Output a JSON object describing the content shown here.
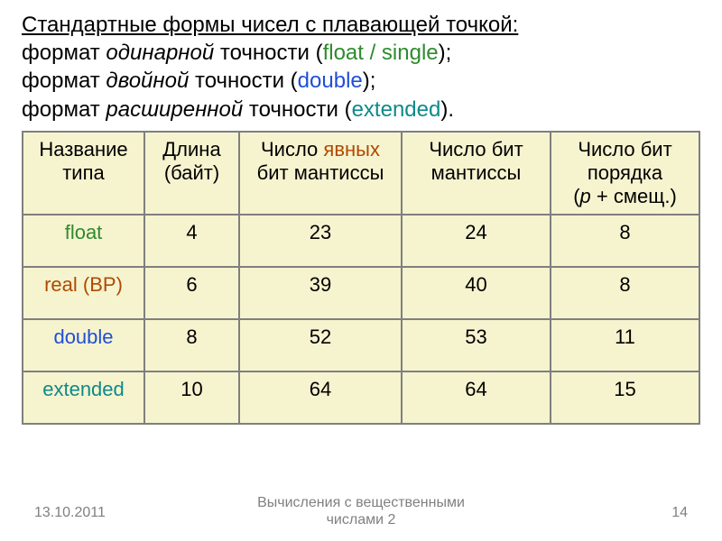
{
  "intro": {
    "heading": "Стандартные формы чисел с плавающей точкой:",
    "line1_pre": "формат ",
    "line1_em": "одинарной",
    "line1_post": " точности (",
    "line1_kw": "float / single",
    "line1_end": ");",
    "line2_pre": "формат ",
    "line2_em": "двойной",
    "line2_post": " точности (",
    "line2_kw": "double",
    "line2_end": ");",
    "line3_pre": "формат ",
    "line3_em": "расширенной",
    "line3_post": " точности (",
    "line3_kw": "extended",
    "line3_end": ")."
  },
  "table": {
    "head": {
      "c1": "Название типа",
      "c2": "Длина (байт)",
      "c3_pre": "Число ",
      "c3_kw": "явных",
      "c3_post": " бит мантиссы",
      "c4": "Число бит мантиссы",
      "c5_l1": "Число бит порядка",
      "c5_l2_pre": "(",
      "c5_l2_p": "p",
      "c5_l2_post": " + смещ.)"
    },
    "r1": {
      "name": "float",
      "len": "4",
      "explicit": "23",
      "mant": "24",
      "exp": "8"
    },
    "r2": {
      "name": "real (BP)",
      "len": "6",
      "explicit": "39",
      "mant": "40",
      "exp": "8"
    },
    "r3": {
      "name": "double",
      "len": "8",
      "explicit": "52",
      "mant": "53",
      "exp": "11"
    },
    "r4": {
      "name": "extended",
      "len": "10",
      "explicit": "64",
      "mant": "64",
      "exp": "15"
    }
  },
  "footer": {
    "date": "13.10.2011",
    "title_l1": "Вычисления с вещественными",
    "title_l2": "числами 2",
    "pageno": "14"
  },
  "colors": {
    "cell_bg": "#f6f3cf",
    "border": "#7f7f7f",
    "green": "#2e8b2e",
    "blue": "#1f4fd6",
    "teal": "#0e8a8a",
    "brown": "#b04a00",
    "footer": "#808080"
  }
}
